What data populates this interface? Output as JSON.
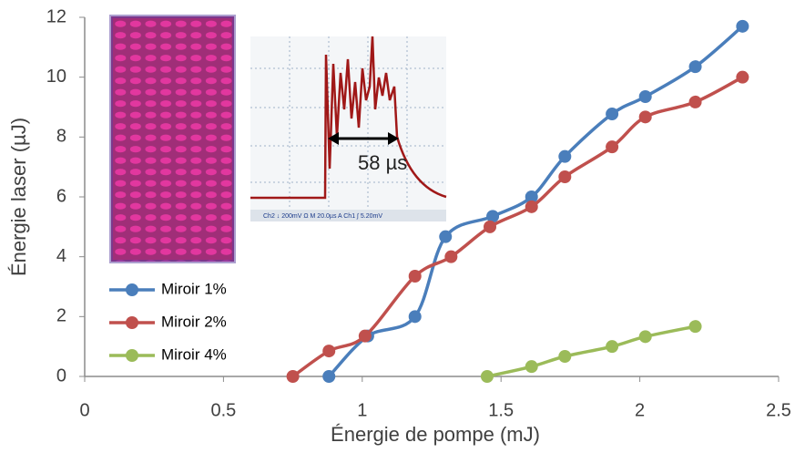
{
  "chart_data": {
    "type": "line",
    "x_label": "Énergie de pompe (mJ)",
    "y_label": "Énergie laser (µJ)",
    "xlim": [
      0,
      2.5
    ],
    "xticks": [
      0,
      0.5,
      1,
      1.5,
      2,
      2.5
    ],
    "ylim": [
      0,
      12
    ],
    "yticks": [
      0,
      2,
      4,
      6,
      8,
      10,
      12
    ],
    "grid": false,
    "smooth": true,
    "legend_position": "lower left",
    "annotations": [
      "58 µs",
      "Ch2 ↓ 200mV Ω  M 20.0µs  A  Ch1 ∫ 5.20mV"
    ],
    "series": [
      {
        "name": "Miroir 1%",
        "color": "#4a7ebb",
        "x": [
          0.88,
          1.02,
          1.19,
          1.3,
          1.47,
          1.61,
          1.73,
          1.9,
          2.02,
          2.2,
          2.37
        ],
        "values": [
          0,
          1.35,
          2,
          4.67,
          5.35,
          6,
          7.35,
          8.77,
          9.35,
          10.35,
          11.7
        ]
      },
      {
        "name": "Miroir 2%",
        "color": "#c0504d",
        "x": [
          0.75,
          0.88,
          1.01,
          1.19,
          1.32,
          1.46,
          1.61,
          1.73,
          1.9,
          2.02,
          2.2,
          2.37
        ],
        "values": [
          0,
          0.85,
          1.35,
          3.35,
          4,
          5,
          5.67,
          6.67,
          7.67,
          8.67,
          9.17,
          10
        ]
      },
      {
        "name": "Miroir 4%",
        "color": "#9bbb59",
        "x": [
          1.45,
          1.61,
          1.73,
          1.9,
          2.02,
          2.2
        ],
        "values": [
          0,
          0.33,
          0.67,
          1,
          1.33,
          1.67
        ]
      }
    ]
  }
}
